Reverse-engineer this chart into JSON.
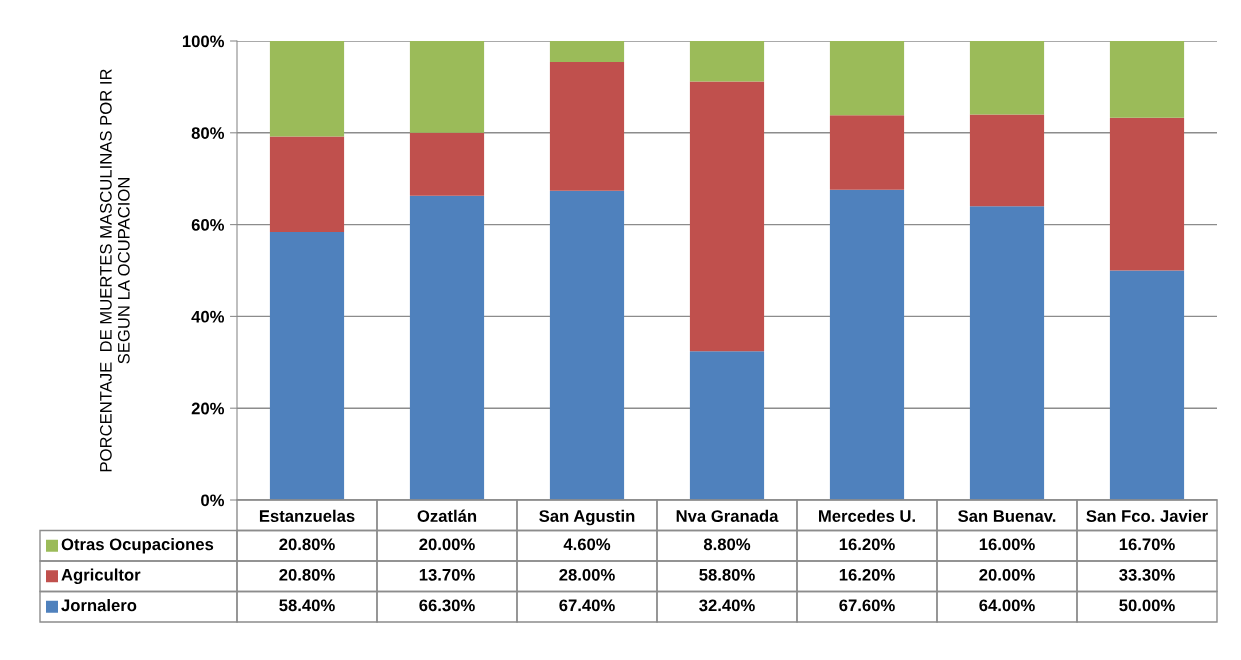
{
  "chart_data": {
    "type": "bar",
    "stacked": true,
    "ylabel": "PORCENTAJE  DE MUERTES MASCULINAS POR IR\nSEGUN LA OCUPACION",
    "categories": [
      "Estanzuelas",
      "Ozatlán",
      "San Agustin",
      "Nva Granada",
      "Mercedes U.",
      "San Buenav.",
      "San Fco. Javier"
    ],
    "series": [
      {
        "name": "Jornalero",
        "color": "#4f81bd",
        "values": [
          58.4,
          66.3,
          67.4,
          32.4,
          67.6,
          64.0,
          50.0
        ],
        "value_labels": [
          "58.40%",
          "66.30%",
          "67.40%",
          "32.40%",
          "67.60%",
          "64.00%",
          "50.00%"
        ]
      },
      {
        "name": "Agricultor",
        "color": "#c0504d",
        "values": [
          20.8,
          13.7,
          28.0,
          58.8,
          16.2,
          20.0,
          33.3
        ],
        "value_labels": [
          "20.80%",
          "13.70%",
          "28.00%",
          "58.80%",
          "16.20%",
          "20.00%",
          "33.30%"
        ]
      },
      {
        "name": "Otras Ocupaciones",
        "color": "#9bbb59",
        "values": [
          20.8,
          20.0,
          4.6,
          8.8,
          16.2,
          16.0,
          16.7
        ],
        "value_labels": [
          "20.80%",
          "20.00%",
          "4.60%",
          "8.80%",
          "16.20%",
          "16.00%",
          "16.70%"
        ]
      }
    ],
    "ylim": [
      0,
      100
    ],
    "yticks": [
      {
        "value": 0,
        "label": "0%"
      },
      {
        "value": 20,
        "label": "20%"
      },
      {
        "value": 40,
        "label": "40%"
      },
      {
        "value": 60,
        "label": "60%"
      },
      {
        "value": 80,
        "label": "80%"
      },
      {
        "value": 100,
        "label": "100%"
      }
    ],
    "grid": "y",
    "legend": "bottom"
  }
}
